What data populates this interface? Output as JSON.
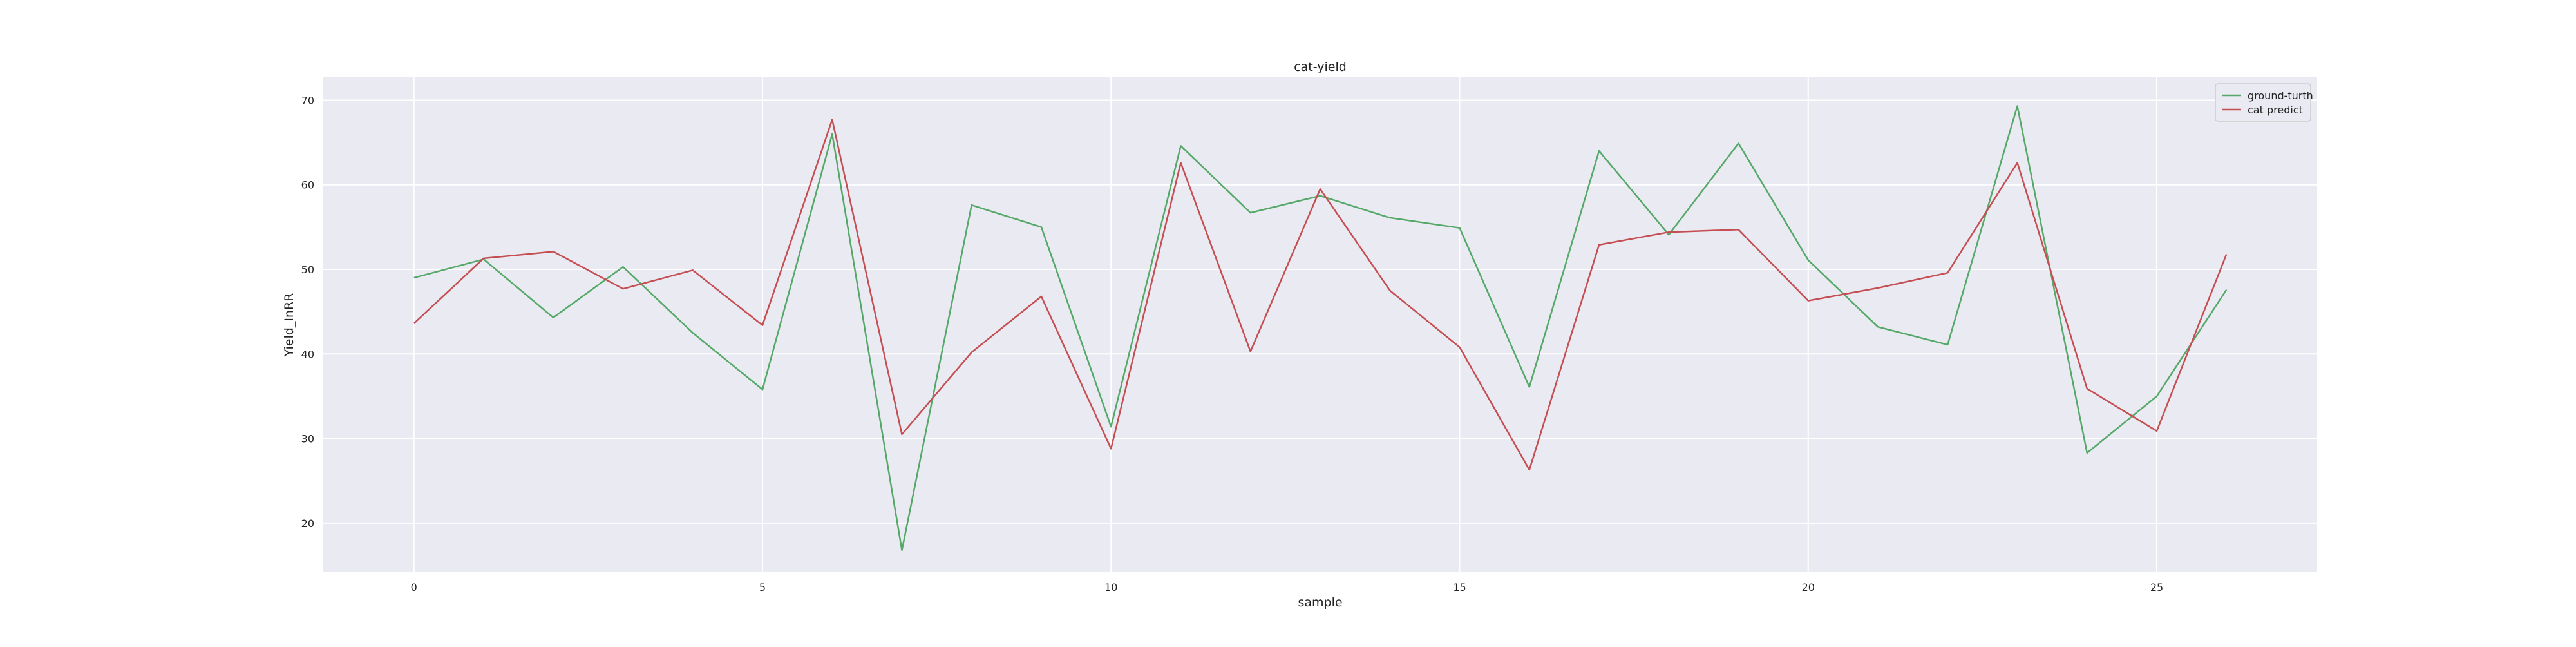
{
  "chart_data": {
    "type": "line",
    "title": "cat-yield",
    "xlabel": "sample",
    "ylabel": "Yield_InRR",
    "xlim": [
      -1.3,
      27.3
    ],
    "ylim": [
      14.2,
      72.7
    ],
    "xticks": [
      0,
      5,
      10,
      15,
      20,
      25
    ],
    "yticks": [
      20,
      30,
      40,
      50,
      60,
      70
    ],
    "grid": true,
    "legend_position": "top-right",
    "x": [
      0,
      1,
      2,
      3,
      4,
      5,
      6,
      7,
      8,
      9,
      10,
      11,
      12,
      13,
      14,
      15,
      16,
      17,
      18,
      19,
      20,
      21,
      22,
      23,
      24,
      25,
      26
    ],
    "series": [
      {
        "name": "ground-turth",
        "color": "#55a868",
        "values": [
          49.0,
          51.2,
          44.3,
          50.3,
          42.5,
          35.8,
          66.0,
          16.8,
          57.6,
          55.0,
          31.4,
          64.6,
          56.7,
          58.7,
          56.1,
          54.9,
          36.1,
          64.0,
          54.1,
          64.9,
          51.1,
          43.2,
          41.1,
          69.3,
          28.3,
          35.0,
          47.6
        ]
      },
      {
        "name": "cat predict",
        "color": "#c44e52",
        "values": [
          43.6,
          51.3,
          52.1,
          47.7,
          49.9,
          43.4,
          67.7,
          30.5,
          40.2,
          46.8,
          28.8,
          62.6,
          40.3,
          59.5,
          47.5,
          40.8,
          26.3,
          52.9,
          54.4,
          54.7,
          46.3,
          47.8,
          49.6,
          62.6,
          35.9,
          30.9,
          51.8
        ]
      }
    ]
  }
}
